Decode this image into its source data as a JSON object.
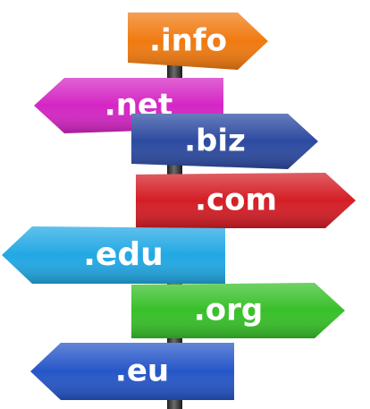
{
  "signpost": {
    "signs": [
      {
        "label": ".info",
        "color": "#f07a10",
        "direction": "right"
      },
      {
        "label": ".net",
        "color": "#d426c4",
        "direction": "left"
      },
      {
        "label": ".biz",
        "color": "#2c4aa0",
        "direction": "right"
      },
      {
        "label": ".com",
        "color": "#d41e26",
        "direction": "right"
      },
      {
        "label": ".edu",
        "color": "#22a8e4",
        "direction": "left"
      },
      {
        "label": ".org",
        "color": "#38c02a",
        "direction": "right"
      },
      {
        "label": ".eu",
        "color": "#2656c8",
        "direction": "left"
      }
    ],
    "pole_color": "#3a3a3a"
  }
}
